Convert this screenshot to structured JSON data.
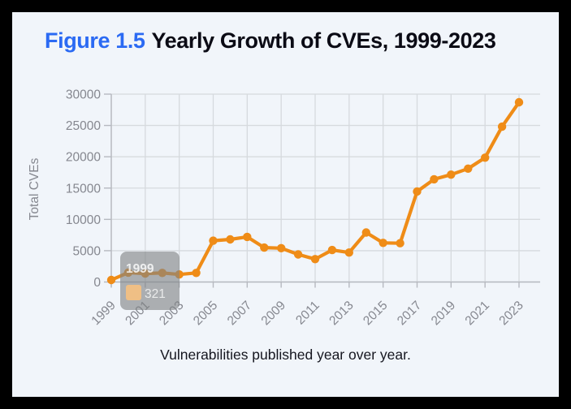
{
  "figure": {
    "label": "Figure 1.5",
    "title": "Yearly Growth of CVEs, 1999-2023",
    "caption": "Vulnerabilities published year over year."
  },
  "tooltip": {
    "title": "1999",
    "value": "321"
  },
  "colors": {
    "accent_blue": "#2b6af3",
    "line_orange": "#ef8c17",
    "frame_black": "#000000",
    "background": "#f1f5fa",
    "axis_text_gray": "#85878f",
    "gridline_gray": "#d6dade",
    "axis_line_gray": "#b6b9c0",
    "tooltip_bg_gray": "#808285",
    "tooltip_swatch_tan": "#f2c083",
    "caption_text": "#15161f",
    "title_text": "#0b0b15"
  },
  "chart_data": {
    "type": "line",
    "title": "Yearly Growth of CVEs, 1999-2023",
    "xlabel": "",
    "ylabel": "Total CVEs",
    "x": [
      1999,
      2000,
      2001,
      2002,
      2003,
      2004,
      2005,
      2006,
      2007,
      2008,
      2009,
      2010,
      2011,
      2012,
      2013,
      2014,
      2015,
      2016,
      2017,
      2018,
      2019,
      2020,
      2021,
      2022,
      2023
    ],
    "values": [
      321,
      1500,
      1350,
      1450,
      1200,
      1450,
      6600,
      6800,
      7200,
      5500,
      5400,
      4400,
      3650,
      5100,
      4700,
      7900,
      6250,
      6200,
      14450,
      16400,
      17150,
      18100,
      19850,
      24800,
      28700
    ],
    "series_name": "Total CVEs",
    "ylim": [
      0,
      30000
    ],
    "yticks": [
      0,
      5000,
      10000,
      15000,
      20000,
      25000,
      30000
    ],
    "xticks": [
      1999,
      2001,
      2003,
      2005,
      2007,
      2009,
      2011,
      2013,
      2015,
      2017,
      2019,
      2021,
      2023
    ],
    "grid": true,
    "legend": "none",
    "marker": "circle",
    "tooltip_point": {
      "x": 1999,
      "y": 321
    }
  }
}
